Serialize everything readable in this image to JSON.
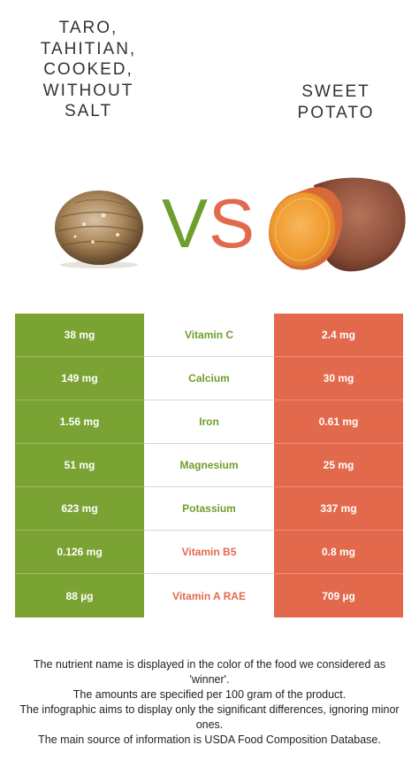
{
  "left_food": {
    "title": "Taro, Tahitian, cooked, without salt",
    "image_icon": "taro-root-image",
    "color": "#7aa333"
  },
  "right_food": {
    "title": "Sweet potato",
    "image_icon": "sweet-potato-image",
    "color": "#e3694d"
  },
  "vs": {
    "v": "V",
    "s": "S"
  },
  "nutrients": [
    {
      "name": "Vitamin C",
      "left": "38 mg",
      "right": "2.4 mg",
      "winner": "left",
      "name_color": "#6e9e2c"
    },
    {
      "name": "Calcium",
      "left": "149 mg",
      "right": "30 mg",
      "winner": "left",
      "name_color": "#6e9e2c"
    },
    {
      "name": "Iron",
      "left": "1.56 mg",
      "right": "0.61 mg",
      "winner": "left",
      "name_color": "#6e9e2c"
    },
    {
      "name": "Magnesium",
      "left": "51 mg",
      "right": "25 mg",
      "winner": "left",
      "name_color": "#6e9e2c"
    },
    {
      "name": "Potassium",
      "left": "623 mg",
      "right": "337 mg",
      "winner": "left",
      "name_color": "#6e9e2c"
    },
    {
      "name": "Vitamin B5",
      "left": "0.126 mg",
      "right": "0.8 mg",
      "winner": "right",
      "name_color": "#e3694d"
    },
    {
      "name": "Vitamin A RAE",
      "left": "88 µg",
      "right": "709 µg",
      "winner": "right",
      "name_color": "#e3694d"
    }
  ],
  "footer": [
    "The nutrient name is displayed in the color of the food we considered as 'winner'.",
    "The amounts are specified per 100 gram of the product.",
    "The infographic aims to display only the significant differences, ignoring minor ones.",
    "The main source of information is USDA Food Composition Database."
  ]
}
